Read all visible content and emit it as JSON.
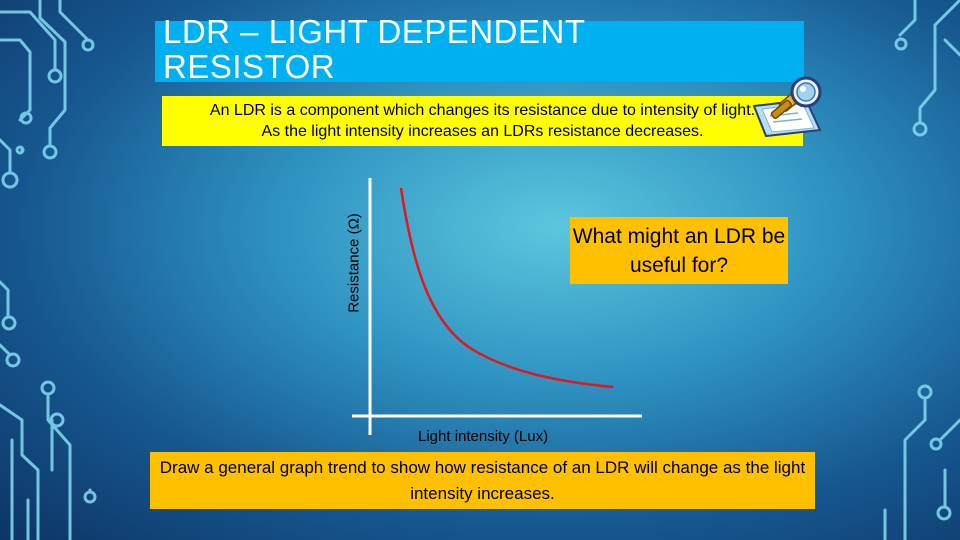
{
  "title": "LDR – LIGHT DEPENDENT RESISTOR",
  "intro": {
    "line1": "An LDR is a component which changes its resistance due to intensity of light.",
    "line2": "As the light intensity increases an LDRs resistance decreases."
  },
  "graph": {
    "y_axis_label": "Resistance (Ω)",
    "x_axis_label": "Light intensity (Lux)",
    "curve_color": "#e3161b",
    "axis_color": "#ffffff"
  },
  "question": "What might an LDR be useful for?",
  "task": "Draw a general graph trend to show how resistance of an LDR will change as the light intensity increases.",
  "colors": {
    "title_bar": "#00b0f0",
    "intro_box": "#ffff00",
    "callout_box": "#ffc000",
    "circuit_lines": "#7fd4ec"
  },
  "icons": {
    "clipart": "magnifier-notepad-icon"
  }
}
